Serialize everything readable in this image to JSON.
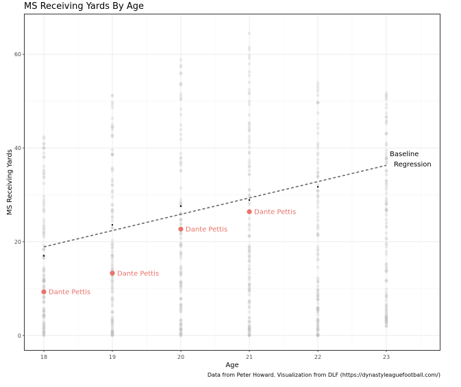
{
  "chart_data": {
    "type": "scatter",
    "title": "MS Receiving Yards By Age",
    "xlabel": "Age",
    "ylabel": "MS Receiving Yards",
    "caption": "Data from Peter Howard. Visualization from DLF (https://dynastyleaguefootball.com/)",
    "xlim": [
      17.72,
      23.78
    ],
    "ylim": [
      -3.1,
      68.5
    ],
    "x_ticks": [
      18,
      19,
      20,
      21,
      22,
      23
    ],
    "y_ticks": [
      0,
      20,
      40,
      60
    ],
    "grid": true,
    "background_distribution": [
      {
        "age": 18,
        "min": 0,
        "max": 43
      },
      {
        "age": 19,
        "min": 0,
        "max": 52
      },
      {
        "age": 20,
        "min": 0,
        "max": 61
      },
      {
        "age": 21,
        "min": 0,
        "max": 65
      },
      {
        "age": 22,
        "min": 0,
        "max": 54
      },
      {
        "age": 23,
        "min": 2,
        "max": 53
      }
    ],
    "age_means": [
      {
        "age": 18,
        "value": 17.0
      },
      {
        "age": 19,
        "value": 23.6
      },
      {
        "age": 20,
        "value": 27.6
      },
      {
        "age": 21,
        "value": 28.9
      },
      {
        "age": 22,
        "value": 31.7
      }
    ],
    "regression": {
      "name": "Baseline Regression",
      "label_line1": "Baseline",
      "label_line2": "Regression",
      "x": [
        18,
        23
      ],
      "y": [
        18.9,
        36.3
      ]
    },
    "highlighted_player": {
      "name": "Dante Pettis",
      "color": "#e8746a",
      "x": [
        18,
        19,
        20,
        21
      ],
      "y": [
        9.3,
        13.3,
        22.7,
        26.4
      ]
    }
  }
}
